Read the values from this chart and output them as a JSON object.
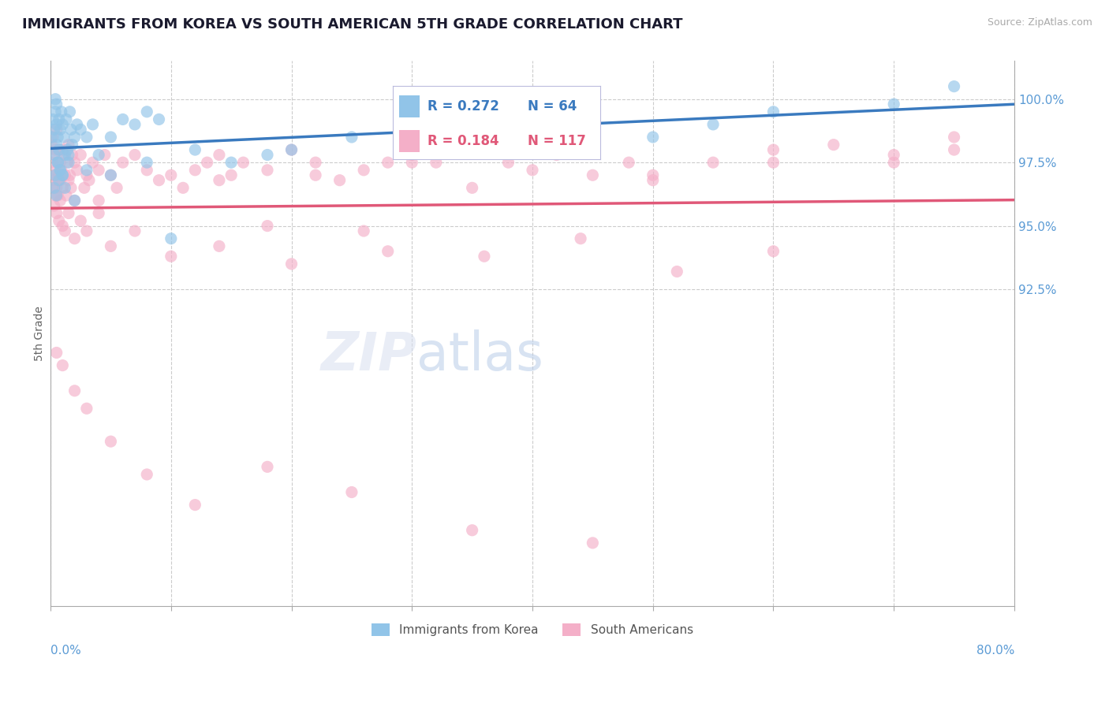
{
  "title": "IMMIGRANTS FROM KOREA VS SOUTH AMERICAN 5TH GRADE CORRELATION CHART",
  "source_text": "Source: ZipAtlas.com",
  "ylabel": "5th Grade",
  "legend_korea": "Immigrants from Korea",
  "legend_sa": "South Americans",
  "r_korea": 0.272,
  "n_korea": 64,
  "r_sa": 0.184,
  "n_sa": 117,
  "color_korea": "#91c4e8",
  "color_sa": "#f4afc8",
  "line_color_korea": "#3a7abf",
  "line_color_sa": "#e05878",
  "bg_color": "#ffffff",
  "grid_color": "#cccccc",
  "title_color": "#1a1a2e",
  "axis_label_color": "#5b9bd5",
  "xlim": [
    0.0,
    80.0
  ],
  "ylim": [
    80.0,
    101.5
  ],
  "watermark_zip": "ZIP",
  "watermark_atlas": "atlas",
  "korea_x": [
    0.1,
    0.2,
    0.3,
    0.3,
    0.4,
    0.4,
    0.5,
    0.5,
    0.5,
    0.6,
    0.6,
    0.7,
    0.7,
    0.8,
    0.8,
    0.9,
    1.0,
    1.0,
    1.1,
    1.2,
    1.3,
    1.4,
    1.5,
    1.6,
    1.7,
    1.8,
    2.0,
    2.2,
    2.5,
    3.0,
    3.5,
    4.0,
    5.0,
    6.0,
    7.0,
    8.0,
    9.0,
    10.0,
    12.0,
    15.0,
    18.0,
    20.0,
    25.0,
    30.0,
    35.0,
    40.0,
    50.0,
    55.0,
    60.0,
    70.0,
    0.3,
    0.4,
    0.5,
    0.6,
    0.7,
    0.8,
    1.0,
    1.2,
    1.5,
    2.0,
    3.0,
    5.0,
    8.0,
    75.0
  ],
  "korea_y": [
    98.5,
    99.2,
    97.8,
    98.8,
    99.5,
    100.0,
    98.2,
    99.0,
    99.8,
    97.5,
    98.5,
    98.0,
    99.2,
    97.2,
    98.8,
    99.5,
    97.0,
    99.0,
    98.5,
    97.8,
    99.2,
    98.0,
    97.5,
    99.5,
    98.8,
    98.2,
    98.5,
    99.0,
    98.8,
    98.5,
    99.0,
    97.8,
    98.5,
    99.2,
    99.0,
    99.5,
    99.2,
    94.5,
    98.0,
    97.5,
    97.8,
    98.0,
    98.5,
    99.0,
    99.2,
    98.8,
    98.5,
    99.0,
    99.5,
    99.8,
    96.5,
    97.0,
    96.2,
    97.5,
    96.8,
    97.2,
    97.0,
    96.5,
    97.8,
    96.0,
    97.2,
    97.0,
    97.5,
    100.5
  ],
  "sa_x": [
    0.1,
    0.1,
    0.2,
    0.2,
    0.3,
    0.3,
    0.4,
    0.4,
    0.5,
    0.5,
    0.6,
    0.6,
    0.7,
    0.7,
    0.8,
    0.8,
    0.9,
    1.0,
    1.0,
    1.1,
    1.2,
    1.3,
    1.4,
    1.5,
    1.5,
    1.6,
    1.7,
    1.8,
    2.0,
    2.0,
    2.2,
    2.5,
    2.8,
    3.0,
    3.2,
    3.5,
    4.0,
    4.0,
    4.5,
    5.0,
    5.5,
    6.0,
    7.0,
    8.0,
    9.0,
    10.0,
    11.0,
    12.0,
    13.0,
    14.0,
    15.0,
    16.0,
    18.0,
    20.0,
    22.0,
    24.0,
    26.0,
    28.0,
    30.0,
    32.0,
    35.0,
    38.0,
    40.0,
    42.0,
    45.0,
    48.0,
    50.0,
    55.0,
    60.0,
    65.0,
    70.0,
    75.0,
    0.2,
    0.3,
    0.4,
    0.5,
    0.6,
    0.7,
    0.8,
    1.0,
    1.2,
    1.5,
    2.0,
    2.5,
    3.0,
    4.0,
    5.0,
    7.0,
    10.0,
    14.0,
    20.0,
    28.0,
    36.0,
    44.0,
    52.0,
    60.0,
    14.0,
    22.0,
    30.0,
    40.0,
    50.0,
    60.0,
    70.0,
    75.0,
    35.0,
    45.0,
    18.0,
    26.0,
    0.5,
    1.0,
    2.0,
    3.0,
    5.0,
    8.0,
    12.0,
    18.0,
    25.0,
    35.0,
    45.0
  ],
  "sa_y": [
    97.5,
    98.2,
    97.0,
    98.5,
    96.8,
    97.8,
    98.0,
    97.2,
    96.5,
    98.8,
    97.5,
    96.2,
    98.0,
    97.0,
    96.8,
    97.5,
    97.2,
    98.0,
    96.5,
    97.8,
    97.0,
    96.2,
    97.5,
    98.2,
    96.8,
    97.0,
    96.5,
    97.8,
    97.5,
    96.0,
    97.2,
    97.8,
    96.5,
    97.0,
    96.8,
    97.5,
    97.2,
    96.0,
    97.8,
    97.0,
    96.5,
    97.5,
    97.8,
    97.2,
    96.8,
    97.0,
    96.5,
    97.2,
    97.5,
    97.8,
    97.0,
    97.5,
    97.2,
    98.0,
    97.5,
    96.8,
    97.2,
    97.5,
    97.8,
    97.5,
    98.0,
    97.5,
    98.0,
    97.8,
    98.2,
    97.5,
    97.0,
    97.5,
    98.0,
    98.2,
    97.5,
    98.5,
    96.5,
    95.8,
    96.2,
    95.5,
    96.8,
    95.2,
    96.0,
    95.0,
    94.8,
    95.5,
    94.5,
    95.2,
    94.8,
    95.5,
    94.2,
    94.8,
    93.8,
    94.2,
    93.5,
    94.0,
    93.8,
    94.5,
    93.2,
    94.0,
    96.8,
    97.0,
    97.5,
    97.2,
    96.8,
    97.5,
    97.8,
    98.0,
    96.5,
    97.0,
    95.0,
    94.8,
    90.0,
    89.5,
    88.5,
    87.8,
    86.5,
    85.2,
    84.0,
    85.5,
    84.5,
    83.0,
    82.5
  ]
}
